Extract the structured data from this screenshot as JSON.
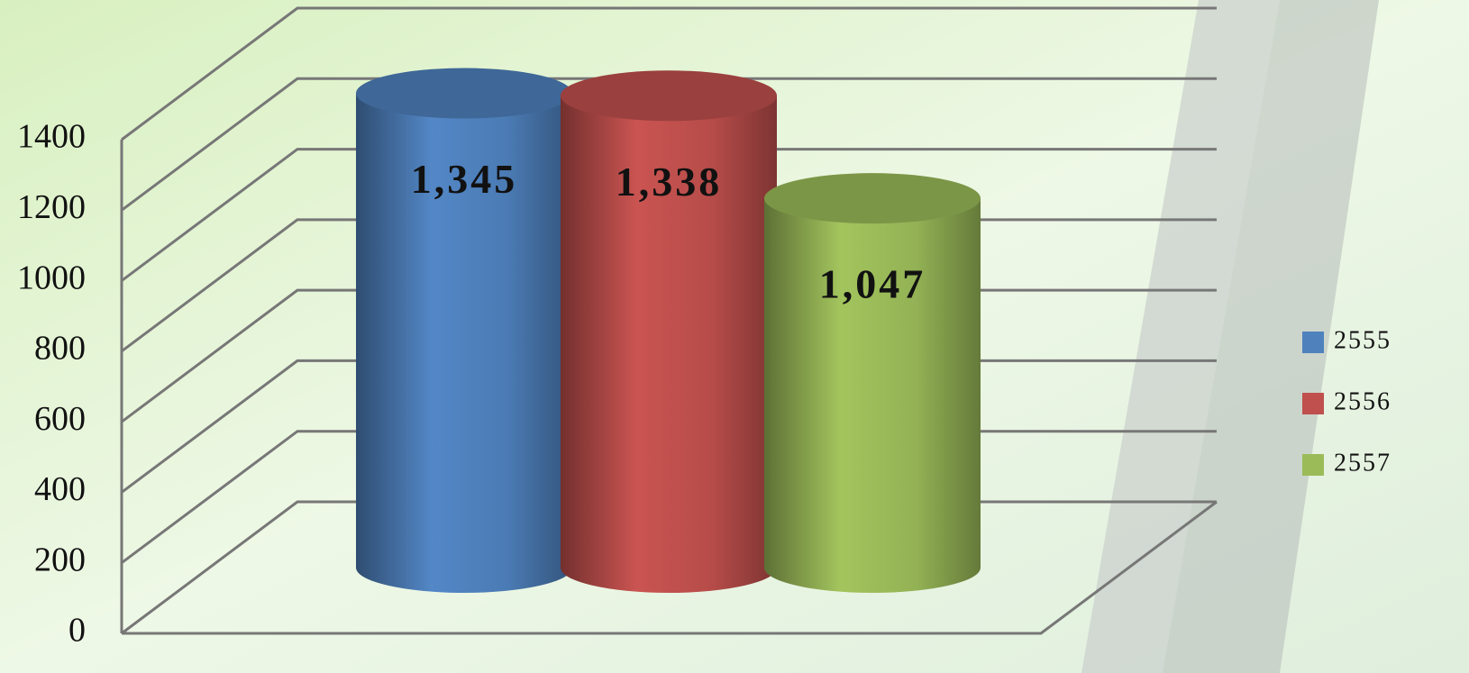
{
  "chart_data": {
    "type": "bar",
    "categories": [
      null
    ],
    "series": [
      {
        "name": "2555",
        "color": "#4f81bd",
        "values": [
          1345
        ],
        "value_labels": [
          "1,345"
        ]
      },
      {
        "name": "2556",
        "color": "#c0504d",
        "values": [
          1338
        ],
        "value_labels": [
          "1,338"
        ]
      },
      {
        "name": "2557",
        "color": "#9bbb59",
        "values": [
          1047
        ],
        "value_labels": [
          "1,047"
        ]
      }
    ],
    "ylim": [
      0,
      1400
    ],
    "yticks": [
      0,
      200,
      400,
      600,
      800,
      1000,
      1200,
      1400
    ],
    "grid": true,
    "legend": "right"
  }
}
